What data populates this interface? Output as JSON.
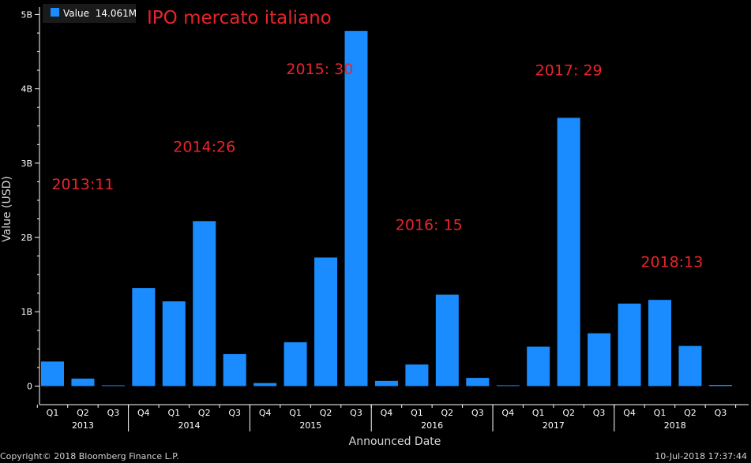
{
  "chart_data": {
    "type": "bar",
    "title": "IPO mercato italiano",
    "xlabel": "Announced Date",
    "ylabel": "Value (USD)",
    "legend": {
      "label": "Value",
      "value": "14.061M",
      "position": "top-left"
    },
    "categories": [
      "Q1",
      "Q2",
      "Q3",
      "Q4",
      "Q1",
      "Q2",
      "Q3",
      "Q4",
      "Q1",
      "Q2",
      "Q3",
      "Q4",
      "Q1",
      "Q2",
      "Q3",
      "Q4",
      "Q1",
      "Q2",
      "Q3",
      "Q4",
      "Q1",
      "Q2",
      "Q3"
    ],
    "years": [
      {
        "label": "2013",
        "quarters": 3
      },
      {
        "label": "2014",
        "quarters": 4
      },
      {
        "label": "2015",
        "quarters": 4
      },
      {
        "label": "2016",
        "quarters": 4
      },
      {
        "label": "2017",
        "quarters": 4
      },
      {
        "label": "2018",
        "quarters": 4
      }
    ],
    "series": [
      {
        "name": "Value",
        "color": "#1a8cff",
        "values": [
          0.33,
          0.1,
          0.01,
          1.32,
          1.14,
          2.22,
          0.43,
          0.04,
          0.59,
          1.73,
          4.78,
          0.07,
          0.29,
          1.23,
          0.11,
          0.005,
          0.53,
          3.61,
          0.71,
          1.11,
          1.16,
          0.54,
          0.015
        ]
      }
    ],
    "ylim": [
      -0.25,
      5.1
    ],
    "yticks": [
      {
        "value": 0,
        "label": "0"
      },
      {
        "value": 1,
        "label": "1B"
      },
      {
        "value": 2,
        "label": "2B"
      },
      {
        "value": 3,
        "label": "3B"
      },
      {
        "value": 4,
        "label": "4B"
      },
      {
        "value": 5,
        "label": "5B"
      }
    ],
    "annotations": [
      {
        "text": "2013:11",
        "x": 1,
        "y": 2.65
      },
      {
        "text": "2014:26",
        "x": 5,
        "y": 3.15
      },
      {
        "text": "2015: 30",
        "x": 8.8,
        "y": 4.2
      },
      {
        "text": "2016: 15",
        "x": 12.4,
        "y": 2.1
      },
      {
        "text": "2017: 29",
        "x": 17,
        "y": 4.18
      },
      {
        "text": "2018:13",
        "x": 20.4,
        "y": 1.6
      }
    ],
    "grid": false
  },
  "footer": {
    "copyright": "Copyright© 2018 Bloomberg Finance L.P.",
    "timestamp": "10-Jul-2018 17:37:44"
  },
  "colors": {
    "background": "#000000",
    "bar": "#1a8cff",
    "annotation": "#e8242b",
    "axis": "#ffffff"
  }
}
